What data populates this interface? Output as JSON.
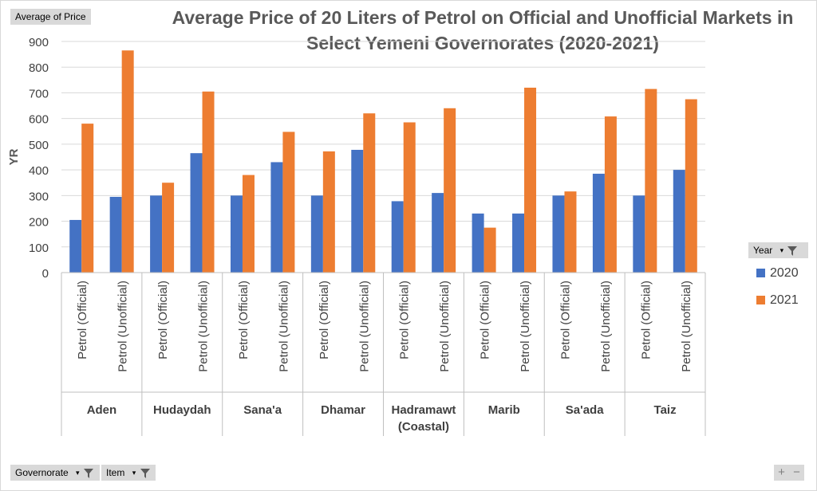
{
  "pivot": {
    "value_field": "Average of Price",
    "legend_field": "Year",
    "axis_fields": [
      "Governorate",
      "Item"
    ],
    "zoom_controls": [
      "+",
      "−"
    ]
  },
  "chart_data": {
    "type": "bar",
    "title_lines": [
      "Average Price of 20 Liters of Petrol on Official and Unofficial Markets in",
      "Select Yemeni Governorates (2020-2021)"
    ],
    "ylabel": "YR",
    "xlabel": "",
    "ylim": [
      0,
      900
    ],
    "yticks": [
      "0",
      "100",
      "200",
      "300",
      "400",
      "500",
      "600",
      "700",
      "800",
      "900"
    ],
    "grid": true,
    "legend_position": "right",
    "groups": [
      {
        "name": "Aden",
        "lines": [
          "Aden"
        ]
      },
      {
        "name": "Hudaydah",
        "lines": [
          "Hudaydah"
        ]
      },
      {
        "name": "Sana'a",
        "lines": [
          "Sana'a"
        ]
      },
      {
        "name": "Dhamar",
        "lines": [
          "Dhamar"
        ]
      },
      {
        "name": "Hadramawt (Coastal)",
        "lines": [
          "Hadramawt",
          "(Coastal)"
        ]
      },
      {
        "name": "Marib",
        "lines": [
          "Marib"
        ]
      },
      {
        "name": "Sa'ada",
        "lines": [
          "Sa'ada"
        ]
      },
      {
        "name": "Taiz",
        "lines": [
          "Taiz"
        ]
      }
    ],
    "items": [
      "Petrol (Official)",
      "Petrol (Unofficial)"
    ],
    "series": [
      {
        "name": "2020",
        "color": "#4472c4",
        "values": [
          205,
          295,
          300,
          465,
          300,
          430,
          300,
          478,
          278,
          310,
          230,
          230,
          300,
          385,
          300,
          400
        ]
      },
      {
        "name": "2021",
        "color": "#ed7d31",
        "values": [
          580,
          865,
          350,
          705,
          380,
          548,
          472,
          620,
          585,
          640,
          175,
          720,
          316,
          608,
          715,
          675
        ]
      }
    ]
  }
}
